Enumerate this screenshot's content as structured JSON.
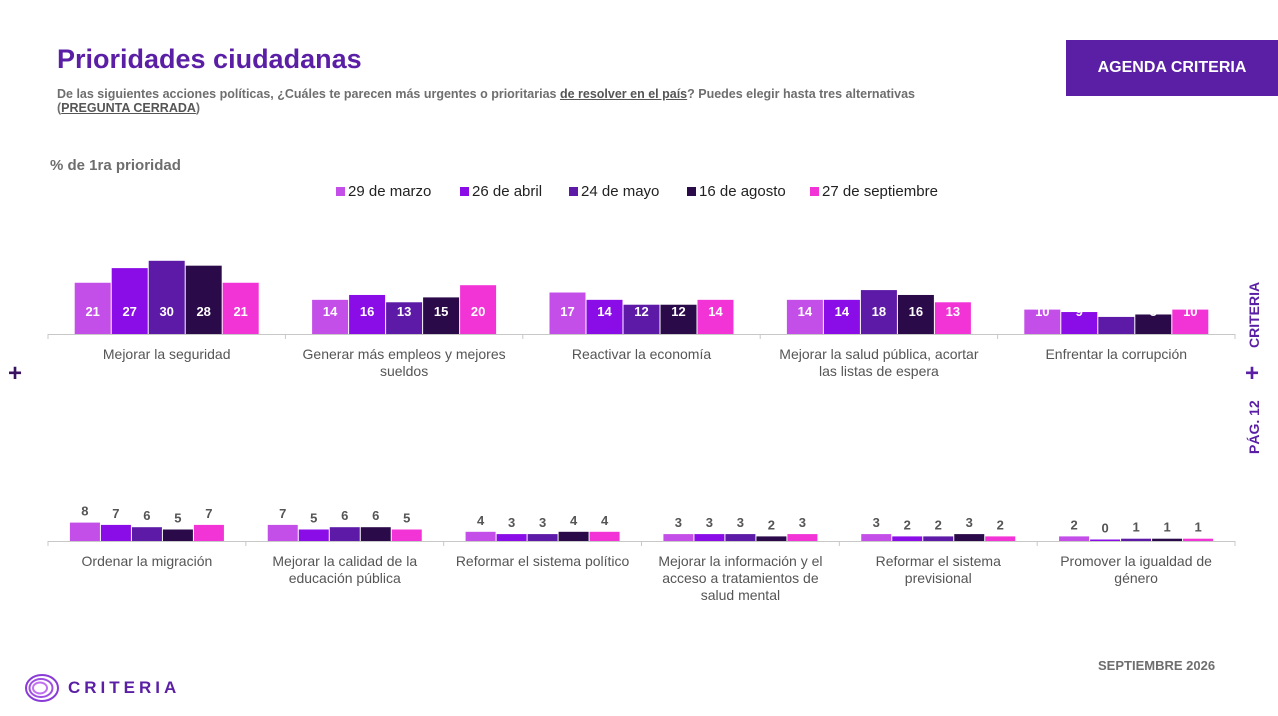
{
  "header": {
    "title": "Prioridades ciudadanas",
    "subtitle_pre": "De las siguientes acciones políticas, ¿Cuáles te parecen más urgentes o prioritarias ",
    "subtitle_emph": "de resolver en el país",
    "subtitle_mid": "? Puedes elegir hasta tres alternativas (",
    "subtitle_tag": "PREGUNTA CERRADA",
    "subtitle_end": ")",
    "badge": "AGENDA CRITERIA"
  },
  "metric_label": "% de 1ra prioridad",
  "side": {
    "brand": "CRITERIA",
    "page": "PÁG. 12",
    "plus": "+"
  },
  "footer": {
    "date": "SEPTIEMBRE 2026",
    "logo_text": "CRITERIA"
  },
  "colors": {
    "accent": "#5a1fa5",
    "series": [
      "#c44ee8",
      "#8a0ce6",
      "#5c1aa6",
      "#2b0a4a",
      "#f233d6"
    ]
  },
  "chart_data": [
    {
      "type": "bar",
      "title": "",
      "categories": [
        "Mejorar la seguridad",
        "Generar más empleos y mejores sueldos",
        "Reactivar la economía",
        "Mejorar la salud pública, acortar las listas de espera",
        "Enfrentar la corrupción"
      ],
      "category_lines": [
        [
          "Mejorar la seguridad"
        ],
        [
          "Generar más empleos y mejores",
          "sueldos"
        ],
        [
          "Reactivar la economía"
        ],
        [
          "Mejorar la salud pública, acortar",
          "las listas de espera"
        ],
        [
          "Enfrentar la corrupción"
        ]
      ],
      "series": [
        {
          "name": "29 de marzo",
          "values": [
            21,
            14,
            17,
            14,
            10
          ]
        },
        {
          "name": "26 de abril",
          "values": [
            27,
            16,
            14,
            14,
            9
          ]
        },
        {
          "name": "24 de mayo",
          "values": [
            30,
            13,
            12,
            18,
            7
          ]
        },
        {
          "name": "16 de agosto",
          "values": [
            28,
            15,
            12,
            16,
            8
          ]
        },
        {
          "name": "27 de septiembre",
          "values": [
            21,
            20,
            14,
            13,
            10
          ]
        }
      ],
      "legend": "top",
      "grid": false
    },
    {
      "type": "bar",
      "title": "",
      "categories": [
        "Ordenar la migración",
        "Mejorar la calidad de la educación pública",
        "Reformar el sistema político",
        "Mejorar la información y el acceso a tratamientos de salud mental",
        "Reformar el sistema previsional",
        "Promover la igualdad de género"
      ],
      "category_lines": [
        [
          "Ordenar la migración"
        ],
        [
          "Mejorar la calidad de la",
          "educación pública"
        ],
        [
          "Reformar el sistema político"
        ],
        [
          "Mejorar la información y el",
          "acceso a tratamientos de",
          "salud mental"
        ],
        [
          "Reformar el sistema",
          "previsional"
        ],
        [
          "Promover la igualdad de",
          "género"
        ]
      ],
      "series": [
        {
          "name": "29 de marzo",
          "values": [
            8,
            7,
            4,
            3,
            3,
            2
          ]
        },
        {
          "name": "26 de abril",
          "values": [
            7,
            5,
            3,
            3,
            2,
            0
          ]
        },
        {
          "name": "24 de mayo",
          "values": [
            6,
            6,
            3,
            3,
            2,
            1
          ]
        },
        {
          "name": "16 de agosto",
          "values": [
            5,
            6,
            4,
            2,
            3,
            1
          ]
        },
        {
          "name": "27 de septiembre",
          "values": [
            7,
            5,
            4,
            3,
            2,
            1
          ]
        }
      ],
      "legend": "top",
      "grid": false
    }
  ]
}
